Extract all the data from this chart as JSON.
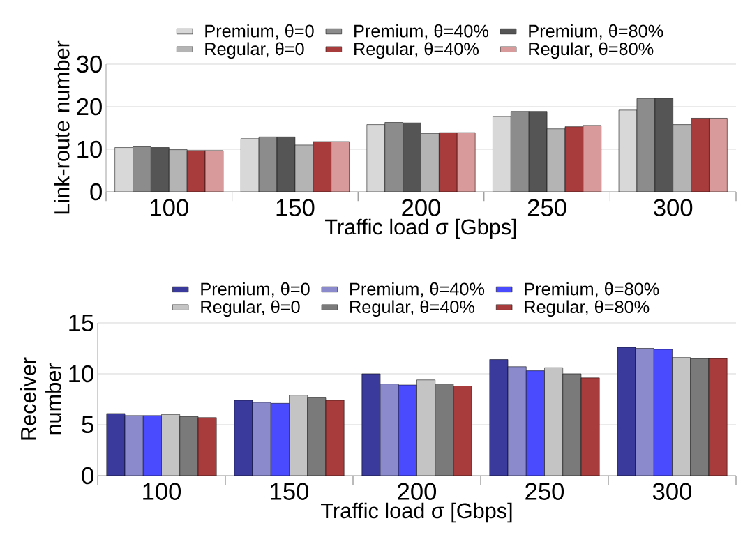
{
  "chart_data": [
    {
      "type": "bar",
      "xlabel": "Traffic load σ [Gbps]",
      "ylabel": "Link-route number",
      "categories": [
        "100",
        "150",
        "200",
        "250",
        "300"
      ],
      "ylim": [
        0,
        30
      ],
      "yticks": [
        0,
        10,
        20,
        30
      ],
      "grid": "y",
      "legend": "top",
      "series": [
        {
          "name": "Premium, θ=0",
          "color": "#d8d8d8",
          "values": [
            10.4,
            12.5,
            15.8,
            17.7,
            19.2
          ]
        },
        {
          "name": "Premium, θ=40%",
          "color": "#8c8c8c",
          "values": [
            10.6,
            12.9,
            16.3,
            18.9,
            21.9
          ]
        },
        {
          "name": "Premium, θ=80%",
          "color": "#555555",
          "values": [
            10.4,
            12.9,
            16.2,
            18.9,
            22.0
          ]
        },
        {
          "name": "Regular, θ=0",
          "color": "#b4b4b4",
          "values": [
            9.9,
            11.0,
            13.7,
            14.8,
            15.8
          ]
        },
        {
          "name": "Regular, θ=40%",
          "color": "#a83c3c",
          "values": [
            9.7,
            11.8,
            13.9,
            15.3,
            17.3
          ]
        },
        {
          "name": "Regular, θ=80%",
          "color": "#d89a9a",
          "values": [
            9.7,
            11.8,
            13.9,
            15.6,
            17.3
          ]
        }
      ]
    },
    {
      "type": "bar",
      "xlabel": "Traffic load σ [Gbps]",
      "ylabel": "Receiver number",
      "categories": [
        "100",
        "150",
        "200",
        "250",
        "300"
      ],
      "ylim": [
        0,
        15
      ],
      "yticks": [
        0,
        5,
        10,
        15
      ],
      "grid": "y",
      "legend": "top",
      "series": [
        {
          "name": "Premium, θ=0",
          "color": "#3a3a9c",
          "values": [
            6.1,
            7.4,
            10.0,
            11.4,
            12.6
          ]
        },
        {
          "name": "Premium, θ=40%",
          "color": "#8a8acc",
          "values": [
            5.9,
            7.2,
            9.0,
            10.7,
            12.5
          ]
        },
        {
          "name": "Premium, θ=80%",
          "color": "#4a4aff",
          "values": [
            5.9,
            7.1,
            8.9,
            10.3,
            12.4
          ]
        },
        {
          "name": "Regular, θ=0",
          "color": "#c4c4c4",
          "values": [
            6.0,
            7.9,
            9.4,
            10.6,
            11.6
          ]
        },
        {
          "name": "Regular, θ=40%",
          "color": "#7a7a7a",
          "values": [
            5.8,
            7.7,
            9.0,
            10.0,
            11.5
          ]
        },
        {
          "name": "Regular, θ=80%",
          "color": "#a83c3c",
          "values": [
            5.7,
            7.4,
            8.8,
            9.6,
            11.5
          ]
        }
      ]
    }
  ]
}
